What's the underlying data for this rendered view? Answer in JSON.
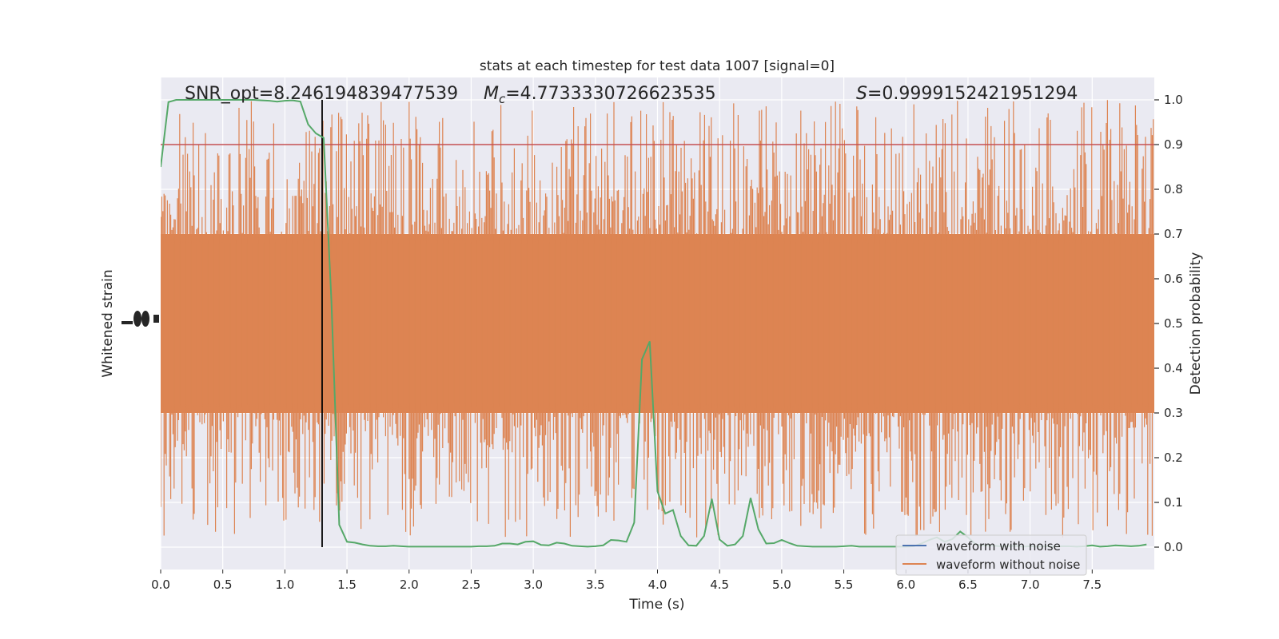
{
  "chart_data": {
    "type": "line",
    "title": "stats at each timestep for test data 1007 [signal=0]",
    "xlabel": "Time (s)",
    "ylabel_left": "Whitened strain",
    "ylabel_right": "Detection probability",
    "xlim": [
      0.0,
      8.0
    ],
    "ylim_right": [
      -0.05,
      1.05
    ],
    "x_ticks": [
      "0.0",
      "0.5",
      "1.0",
      "1.5",
      "2.0",
      "2.5",
      "3.0",
      "3.5",
      "4.0",
      "4.5",
      "5.0",
      "5.5",
      "6.0",
      "6.5",
      "7.0",
      "7.5"
    ],
    "y_ticks_right": [
      "0.0",
      "0.1",
      "0.2",
      "0.3",
      "0.4",
      "0.5",
      "0.6",
      "0.7",
      "0.8",
      "0.9",
      "1.0"
    ],
    "grid": true,
    "annotations": {
      "snr_label": "SNR_opt=8.246194839477539",
      "mc_label_symbol": "M",
      "mc_label_sub": "c",
      "mc_label_value": "=4.7733330726623535",
      "s_label_symbol": "S",
      "s_label_value": "=0.9999152421951294"
    },
    "threshold": {
      "y": 0.9,
      "color": "#c44e52"
    },
    "vertical_marker": {
      "x": 1.3,
      "color": "#000000"
    },
    "series": [
      {
        "name": "waveform with noise",
        "color": "#4c72b0"
      },
      {
        "name": "waveform without noise",
        "color": "#dd8452"
      }
    ],
    "detection_probability": {
      "color": "#55a868",
      "x": [
        0.0,
        0.0625,
        0.125,
        0.1875,
        0.25,
        0.3125,
        0.375,
        0.4375,
        0.5,
        0.5625,
        0.625,
        0.6875,
        0.75,
        0.8125,
        0.875,
        0.9375,
        1.0,
        1.0625,
        1.125,
        1.1875,
        1.25,
        1.3125,
        1.375,
        1.4375,
        1.5,
        1.5625,
        1.625,
        1.6875,
        1.75,
        1.8125,
        1.875,
        1.9375,
        2.0,
        2.0625,
        2.125,
        2.1875,
        2.25,
        2.3125,
        2.375,
        2.4375,
        2.5,
        2.5625,
        2.625,
        2.6875,
        2.75,
        2.8125,
        2.875,
        2.9375,
        3.0,
        3.0625,
        3.125,
        3.1875,
        3.25,
        3.3125,
        3.375,
        3.4375,
        3.5,
        3.5625,
        3.625,
        3.6875,
        3.75,
        3.8125,
        3.875,
        3.9375,
        4.0,
        4.0625,
        4.125,
        4.1875,
        4.25,
        4.3125,
        4.375,
        4.4375,
        4.5,
        4.5625,
        4.625,
        4.6875,
        4.75,
        4.8125,
        4.875,
        4.9375,
        5.0,
        5.0625,
        5.125,
        5.1875,
        5.25,
        5.3125,
        5.375,
        5.4375,
        5.5,
        5.5625,
        5.625,
        5.6875,
        5.75,
        5.8125,
        5.875,
        5.9375,
        6.0,
        6.0625,
        6.125,
        6.1875,
        6.25,
        6.3125,
        6.375,
        6.4375,
        6.5,
        6.5625,
        6.625,
        6.6875,
        6.75,
        6.8125,
        6.875,
        6.9375,
        7.0,
        7.0625,
        7.125,
        7.1875,
        7.25,
        7.3125,
        7.375,
        7.4375,
        7.5,
        7.5625,
        7.625,
        7.6875,
        7.75,
        7.8125,
        7.875,
        7.9375
      ],
      "y": [
        0.85,
        0.995,
        1.0,
        1.0,
        1.0,
        1.0,
        1.0,
        1.0,
        1.0,
        1.0,
        1.0,
        1.0,
        1.0,
        0.999,
        0.998,
        0.996,
        0.998,
        0.999,
        0.996,
        0.945,
        0.925,
        0.915,
        0.55,
        0.05,
        0.012,
        0.01,
        0.006,
        0.003,
        0.002,
        0.002,
        0.003,
        0.002,
        0.001,
        0.001,
        0.001,
        0.001,
        0.001,
        0.001,
        0.001,
        0.001,
        0.001,
        0.002,
        0.002,
        0.003,
        0.008,
        0.008,
        0.006,
        0.012,
        0.013,
        0.005,
        0.004,
        0.01,
        0.008,
        0.003,
        0.002,
        0.001,
        0.002,
        0.004,
        0.016,
        0.015,
        0.012,
        0.055,
        0.42,
        0.46,
        0.125,
        0.075,
        0.083,
        0.025,
        0.004,
        0.003,
        0.025,
        0.108,
        0.017,
        0.003,
        0.006,
        0.025,
        0.11,
        0.04,
        0.008,
        0.009,
        0.016,
        0.009,
        0.003,
        0.002,
        0.001,
        0.001,
        0.001,
        0.001,
        0.002,
        0.003,
        0.001,
        0.001,
        0.001,
        0.001,
        0.001,
        0.001,
        0.001,
        0.002,
        0.008,
        0.016,
        0.022,
        0.012,
        0.018,
        0.035,
        0.022,
        0.006,
        0.004,
        0.004,
        0.002,
        0.002,
        0.003,
        0.001,
        0.002,
        0.001,
        0.002,
        0.001,
        0.002,
        0.002,
        0.001,
        0.002,
        0.004,
        0.001,
        0.002,
        0.004,
        0.003,
        0.002,
        0.003,
        0.006
      ]
    }
  }
}
